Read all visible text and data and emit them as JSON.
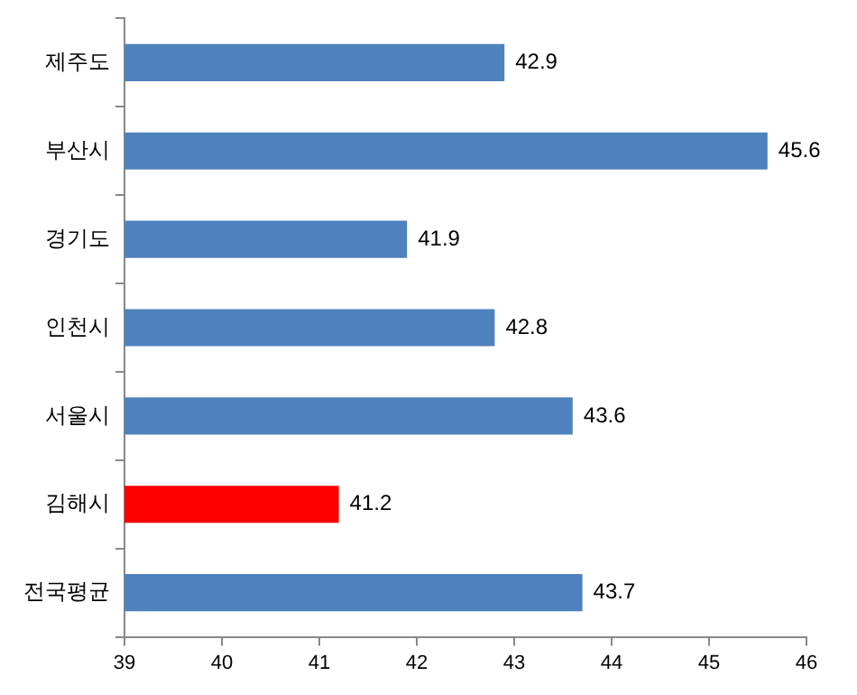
{
  "chart_data": {
    "type": "bar",
    "orientation": "horizontal",
    "categories": [
      "제주도",
      "부산시",
      "경기도",
      "인천시",
      "서울시",
      "김해시",
      "전국평균"
    ],
    "values": [
      42.9,
      45.6,
      41.9,
      42.8,
      43.6,
      41.2,
      43.7
    ],
    "colors": [
      "#4f81bd",
      "#4f81bd",
      "#4f81bd",
      "#4f81bd",
      "#4f81bd",
      "#ff0000",
      "#4f81bd"
    ],
    "xlim": [
      39,
      46
    ],
    "xticks": [
      39,
      40,
      41,
      42,
      43,
      44,
      45,
      46
    ],
    "grid": false,
    "legend": false,
    "data_labels": true
  }
}
